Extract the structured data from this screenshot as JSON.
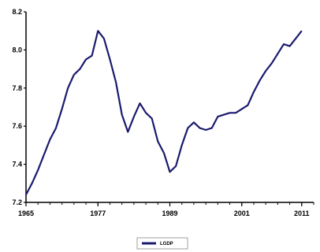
{
  "chart_data": {
    "type": "line",
    "title": "",
    "xlabel": "",
    "ylabel": "",
    "xlim": [
      1965,
      2013
    ],
    "ylim": [
      7.2,
      8.2
    ],
    "x_ticks": [
      "1965",
      "1977",
      "1989",
      "2001",
      "2011"
    ],
    "y_ticks": [
      "7.2",
      "7.4",
      "7.6",
      "7.8",
      "8.0",
      "8.2"
    ],
    "grid": false,
    "legend_position": "bottom-center",
    "series": [
      {
        "name": "LGDP",
        "color": "#1a1a6e",
        "x": [
          1965,
          1966,
          1967,
          1968,
          1969,
          1970,
          1971,
          1972,
          1973,
          1974,
          1975,
          1976,
          1977,
          1978,
          1979,
          1980,
          1981,
          1982,
          1983,
          1984,
          1985,
          1986,
          1987,
          1988,
          1989,
          1990,
          1991,
          1992,
          1993,
          1994,
          1995,
          1996,
          1997,
          1998,
          1999,
          2000,
          2001,
          2002,
          2003,
          2004,
          2005,
          2006,
          2007,
          2008,
          2009,
          2010,
          2011
        ],
        "values": [
          7.24,
          7.3,
          7.37,
          7.45,
          7.53,
          7.59,
          7.69,
          7.8,
          7.87,
          7.9,
          7.95,
          7.97,
          8.1,
          8.06,
          7.95,
          7.83,
          7.66,
          7.57,
          7.65,
          7.72,
          7.67,
          7.64,
          7.52,
          7.46,
          7.36,
          7.39,
          7.5,
          7.59,
          7.62,
          7.59,
          7.58,
          7.59,
          7.65,
          7.66,
          7.67,
          7.67,
          7.69,
          7.71,
          7.78,
          7.84,
          7.89,
          7.93,
          7.98,
          8.03,
          8.02,
          8.06,
          8.1
        ]
      }
    ]
  }
}
